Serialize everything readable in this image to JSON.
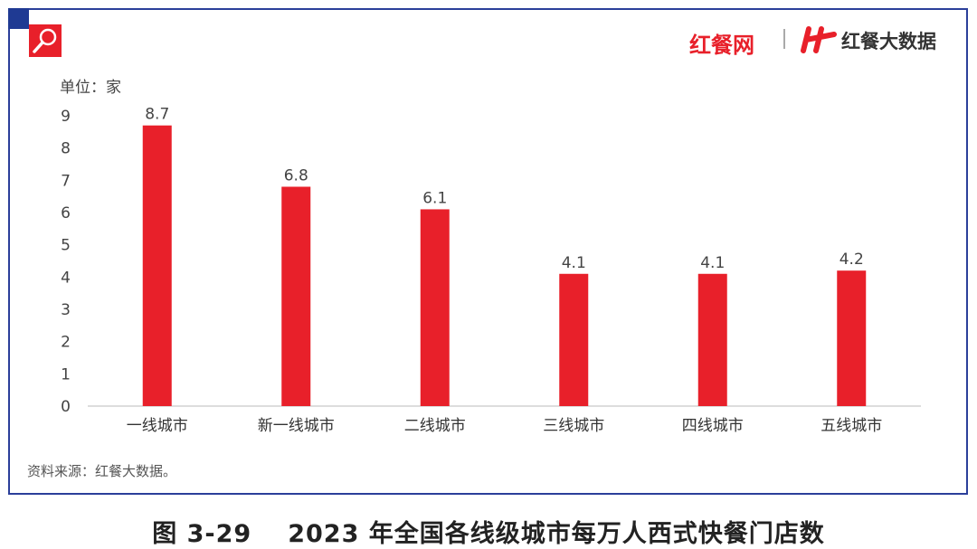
{
  "header": {
    "brand_left": "红餐网",
    "brand_right": "红餐大数据",
    "unit_label": "单位：家"
  },
  "footer": {
    "source": "资料来源：红餐大数据。",
    "figure_number": "图 3-29",
    "figure_title": "2023 年全国各线级城市每万人西式快餐门店数"
  },
  "colors": {
    "bar": "#e8202a",
    "frame": "#2b3f9a",
    "corner": "#1f3a93"
  },
  "icons": {
    "top_left": "search-icon",
    "logo": "h-logo-icon"
  },
  "chart_data": {
    "type": "bar",
    "title": "2023 年全国各线级城市每万人西式快餐门店数",
    "ylabel": "单位：家",
    "xlabel": "",
    "categories": [
      "一线城市",
      "新一线城市",
      "二线城市",
      "三线城市",
      "四线城市",
      "五线城市"
    ],
    "values": [
      8.7,
      6.8,
      6.1,
      4.1,
      4.1,
      4.2
    ],
    "data_labels": [
      "8.7",
      "6.8",
      "6.1",
      "4.1",
      "4.1",
      "4.2"
    ],
    "ylim": [
      0,
      9
    ],
    "yticks": [
      0,
      1,
      2,
      3,
      4,
      5,
      6,
      7,
      8,
      9
    ],
    "grid": false,
    "legend": "none"
  }
}
